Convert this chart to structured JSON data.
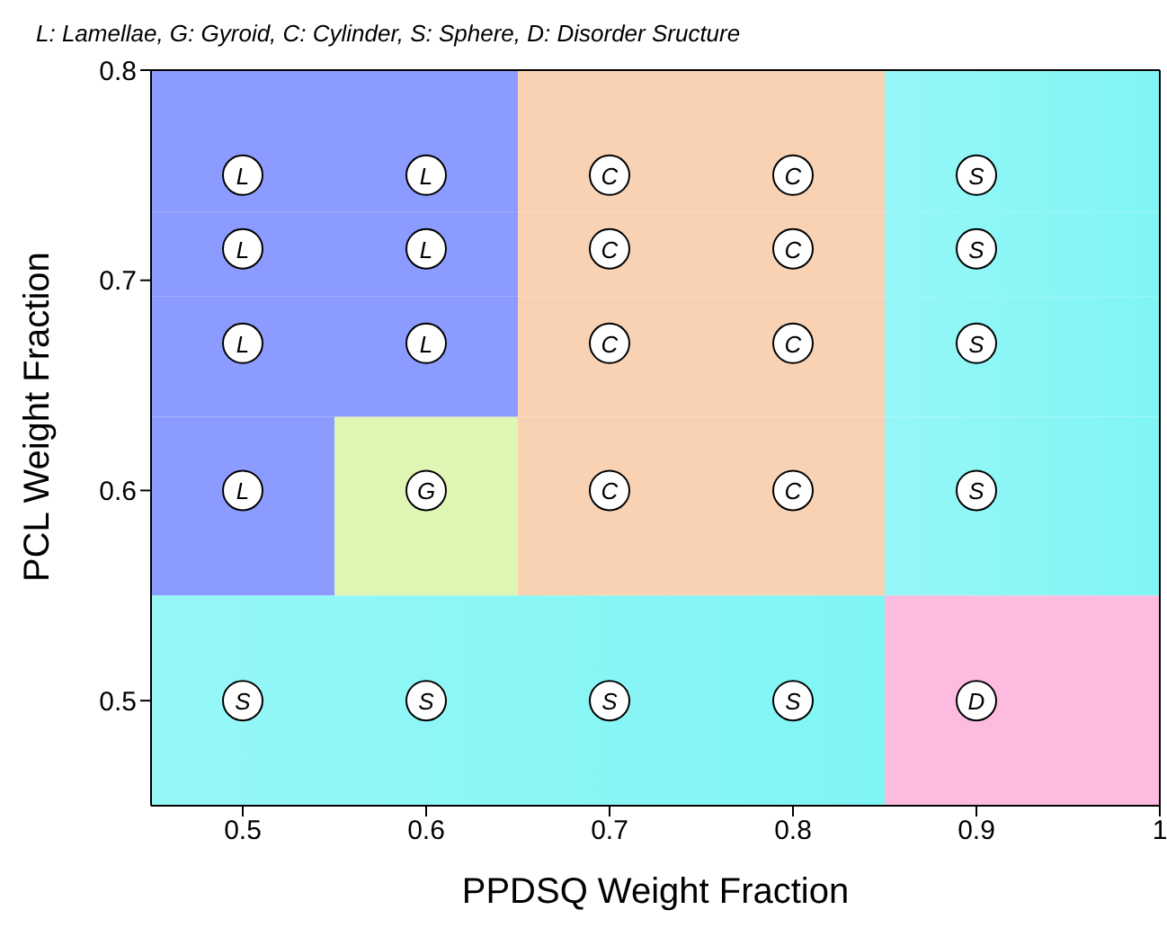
{
  "chart_data": {
    "type": "scatter",
    "xlabel": "PPDSQ Weight Fraction",
    "ylabel": "PCL Weight Fraction",
    "annotations": [
      "L: Lamellae, G: Gyroid, C: Cylinder, S: Sphere, D: Disorder Sructure"
    ],
    "xlim": [
      0.45,
      1
    ],
    "ylim": [
      0.45,
      0.8
    ],
    "xticks": [
      0.5,
      0.6,
      0.7,
      0.8,
      0.9,
      1
    ],
    "yticks": [
      0.5,
      0.6,
      0.7,
      0.8
    ],
    "legend": false,
    "marker": "circle",
    "series": [
      {
        "color": "#ffffff",
        "x": [
          0.5,
          0.5,
          0.5,
          0.5,
          0.6,
          0.6,
          0.6
        ],
        "values": [
          0.75,
          0.715,
          0.67,
          0.6,
          0.75,
          0.715,
          0.67
        ],
        "value_labels": [
          "L",
          "L",
          "L",
          "L",
          "L",
          "L",
          "L"
        ]
      },
      {
        "color": "#ffffff",
        "x": [
          0.6
        ],
        "values": [
          0.6
        ],
        "value_labels": [
          "G"
        ]
      },
      {
        "color": "#ffffff",
        "x": [
          0.7,
          0.7,
          0.7,
          0.7,
          0.8,
          0.8,
          0.8,
          0.8
        ],
        "values": [
          0.75,
          0.715,
          0.67,
          0.6,
          0.75,
          0.715,
          0.67,
          0.6
        ],
        "value_labels": [
          "C",
          "C",
          "C",
          "C",
          "C",
          "C",
          "C",
          "C"
        ]
      },
      {
        "color": "#ffffff",
        "x": [
          0.9,
          0.9,
          0.9,
          0.9,
          0.5,
          0.6,
          0.7,
          0.8
        ],
        "values": [
          0.75,
          0.715,
          0.67,
          0.6,
          0.5,
          0.5,
          0.5,
          0.5
        ],
        "value_labels": [
          "S",
          "S",
          "S",
          "S",
          "S",
          "S",
          "S",
          "S"
        ]
      },
      {
        "color": "#ffffff",
        "x": [
          0.9
        ],
        "values": [
          0.5
        ],
        "value_labels": [
          "D"
        ]
      }
    ]
  }
}
